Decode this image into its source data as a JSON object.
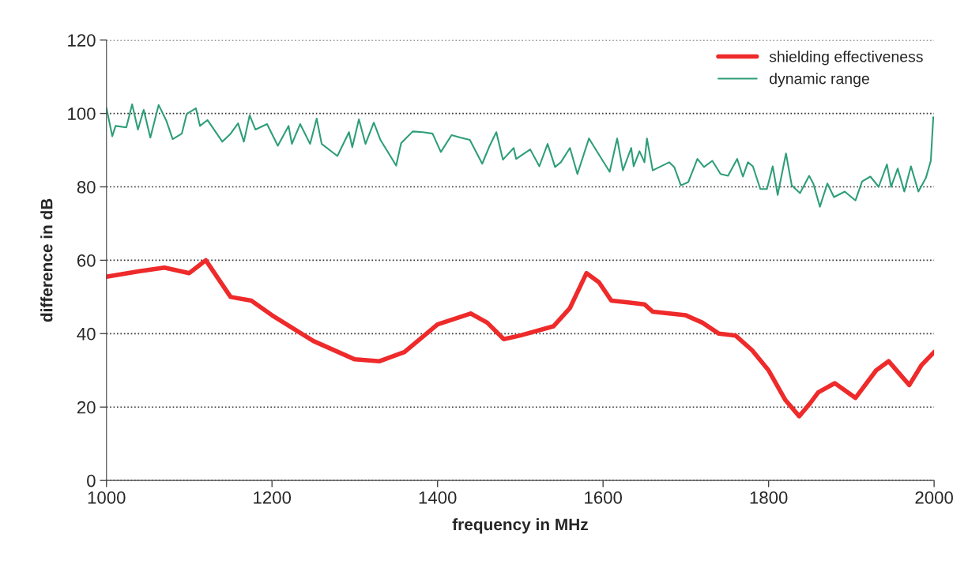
{
  "chart_data": {
    "type": "line",
    "xlabel": "frequency in MHz",
    "ylabel": "difference in dB",
    "xlim": [
      1000,
      2000
    ],
    "xticks": [
      1000,
      1200,
      1400,
      1600,
      1800,
      2000
    ],
    "ylim": [
      0,
      120
    ],
    "yticks": [
      0,
      20,
      40,
      60,
      80,
      100,
      120
    ],
    "grid": "y",
    "legend": "top right",
    "marker": "none",
    "line_style": "solid",
    "series": [
      {
        "name": "shielding effectiveness",
        "color": "#ee2a2a",
        "x": [
          1000,
          1040,
          1070,
          1100,
          1120,
          1150,
          1175,
          1200,
          1250,
          1300,
          1330,
          1360,
          1400,
          1440,
          1460,
          1480,
          1500,
          1540,
          1560,
          1580,
          1595,
          1610,
          1630,
          1650,
          1660,
          1700,
          1720,
          1740,
          1760,
          1780,
          1800,
          1820,
          1837,
          1850,
          1860,
          1880,
          1905,
          1930,
          1945,
          1970,
          1985,
          2000
        ],
        "values": [
          55.5,
          57,
          58,
          56.5,
          60,
          50,
          49,
          45,
          38,
          33,
          32.5,
          35,
          42.5,
          45.5,
          43,
          38.5,
          39.5,
          42,
          47,
          56.5,
          54,
          49,
          48.5,
          48,
          46,
          45,
          43,
          40,
          39.5,
          35.5,
          30,
          22,
          17.5,
          21,
          24,
          26.5,
          22.5,
          30,
          32.5,
          26,
          31.5,
          35
        ]
      },
      {
        "name": "dynamic range",
        "color": "#2e9e78",
        "x": [
          1000,
          1007,
          1011,
          1024,
          1031,
          1038,
          1045,
          1053,
          1063,
          1072,
          1080,
          1091,
          1097,
          1108,
          1113,
          1122,
          1140,
          1150,
          1159,
          1166,
          1173,
          1180,
          1194,
          1207,
          1220,
          1224,
          1234,
          1246,
          1254,
          1260,
          1279,
          1293,
          1297,
          1305,
          1313,
          1323,
          1331,
          1350,
          1356,
          1370,
          1382,
          1394,
          1404,
          1417,
          1428,
          1439,
          1454,
          1463,
          1471,
          1479,
          1492,
          1495,
          1512,
          1523,
          1533,
          1542,
          1549,
          1560,
          1569,
          1583,
          1590,
          1608,
          1617,
          1624,
          1634,
          1637,
          1644,
          1650,
          1653,
          1660,
          1680,
          1686,
          1694,
          1703,
          1714,
          1722,
          1732,
          1742,
          1751,
          1762,
          1769,
          1775,
          1781,
          1790,
          1798,
          1805,
          1811,
          1821,
          1828,
          1838,
          1849,
          1854,
          1862,
          1871,
          1879,
          1892,
          1905,
          1913,
          1923,
          1933,
          1943,
          1948,
          1956,
          1964,
          1972,
          1981,
          1990,
          1996,
          1999
        ],
        "values": [
          101.5,
          93.8,
          96.6,
          96.2,
          102.5,
          95.6,
          101,
          93.4,
          102.3,
          98.2,
          93,
          94.5,
          99.9,
          101.4,
          96.6,
          98.2,
          92.3,
          94.5,
          97.3,
          92.3,
          99.5,
          95.6,
          97.1,
          91.2,
          96.6,
          91.7,
          97.1,
          91.7,
          98.6,
          91.7,
          88.4,
          94.9,
          90.8,
          98.4,
          91.7,
          97.5,
          92.8,
          85.8,
          91.9,
          95.1,
          94.9,
          94.5,
          89.5,
          94.1,
          93.4,
          92.8,
          86.3,
          91.2,
          94.9,
          87.4,
          90.6,
          87.6,
          90.2,
          85.6,
          91.7,
          85.4,
          86.7,
          90.6,
          83.5,
          93.2,
          90.6,
          84.1,
          93.2,
          84.5,
          90.6,
          85.6,
          89.7,
          86.7,
          93.2,
          84.5,
          86.7,
          85.4,
          80.4,
          81.3,
          87.6,
          85.4,
          87.1,
          83.5,
          83,
          87.6,
          82.8,
          86.7,
          85.6,
          79.4,
          79.4,
          85.6,
          77.8,
          89.1,
          80.4,
          78.3,
          83,
          80.9,
          74.6,
          80.9,
          77.2,
          78.7,
          76.3,
          81.5,
          82.8,
          80,
          86.1,
          80,
          85,
          78.7,
          85.6,
          78.7,
          82.4,
          87.1,
          99
        ]
      }
    ]
  }
}
